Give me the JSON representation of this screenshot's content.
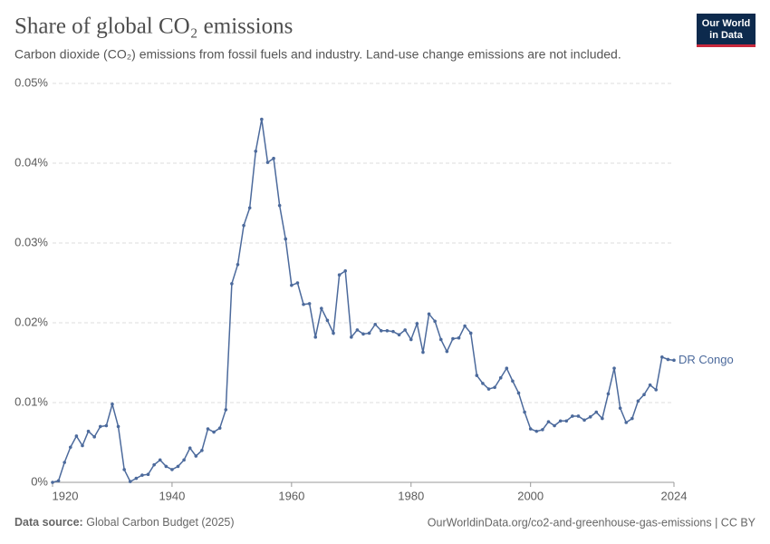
{
  "chart_data": {
    "type": "line",
    "title": "Share of global CO₂ emissions",
    "subtitle": "Carbon dioxide (CO₂) emissions from fossil fuels and industry. Land-use change emissions are not included.",
    "logo": [
      "Our World",
      "in Data"
    ],
    "source_label": "Data source:",
    "source": "Global Carbon Budget (2025)",
    "footer_right": "OurWorldinData.org/co2-and-greenhouse-gas-emissions | CC BY",
    "x": [
      1920,
      1921,
      1922,
      1923,
      1924,
      1925,
      1926,
      1927,
      1928,
      1929,
      1930,
      1931,
      1932,
      1933,
      1934,
      1935,
      1936,
      1937,
      1938,
      1939,
      1940,
      1941,
      1942,
      1943,
      1944,
      1945,
      1946,
      1947,
      1948,
      1949,
      1950,
      1951,
      1952,
      1953,
      1954,
      1955,
      1956,
      1957,
      1958,
      1959,
      1960,
      1961,
      1962,
      1963,
      1964,
      1965,
      1966,
      1967,
      1968,
      1969,
      1970,
      1971,
      1972,
      1973,
      1974,
      1975,
      1976,
      1977,
      1978,
      1979,
      1980,
      1981,
      1982,
      1983,
      1984,
      1985,
      1986,
      1987,
      1988,
      1989,
      1990,
      1991,
      1992,
      1993,
      1994,
      1995,
      1996,
      1997,
      1998,
      1999,
      2000,
      2001,
      2002,
      2003,
      2004,
      2005,
      2006,
      2007,
      2008,
      2009,
      2010,
      2011,
      2012,
      2013,
      2014,
      2015,
      2016,
      2017,
      2018,
      2019,
      2020,
      2021,
      2022,
      2023,
      2024
    ],
    "series": [
      {
        "name": "DR Congo",
        "color": "#4c6a9c",
        "values": [
          0.0,
          0.0002,
          0.0025,
          0.0044,
          0.0058,
          0.0046,
          0.0064,
          0.0057,
          0.007,
          0.0071,
          0.0098,
          0.007,
          0.0016,
          0.0001,
          0.0005,
          0.0009,
          0.001,
          0.0022,
          0.0028,
          0.002,
          0.0016,
          0.002,
          0.0028,
          0.0043,
          0.0033,
          0.004,
          0.0067,
          0.0063,
          0.0068,
          0.0091,
          0.0249,
          0.0273,
          0.0322,
          0.0344,
          0.0415,
          0.0455,
          0.0401,
          0.0406,
          0.0347,
          0.0305,
          0.0247,
          0.025,
          0.0223,
          0.0224,
          0.0182,
          0.0218,
          0.0203,
          0.0187,
          0.026,
          0.0265,
          0.0182,
          0.0191,
          0.0186,
          0.0187,
          0.0198,
          0.019,
          0.019,
          0.0189,
          0.0185,
          0.0191,
          0.0179,
          0.0199,
          0.0163,
          0.0211,
          0.0202,
          0.0179,
          0.0164,
          0.018,
          0.0181,
          0.0196,
          0.0187,
          0.0134,
          0.0124,
          0.0117,
          0.0119,
          0.0131,
          0.0143,
          0.0127,
          0.0112,
          0.0088,
          0.0067,
          0.0064,
          0.0066,
          0.0076,
          0.0071,
          0.0077,
          0.0077,
          0.0083,
          0.0083,
          0.0078,
          0.0082,
          0.0088,
          0.008,
          0.0111,
          0.0143,
          0.0093,
          0.0075,
          0.008,
          0.0102,
          0.011,
          0.0122,
          0.0116,
          0.0157,
          0.0154,
          0.0153
        ]
      }
    ],
    "xlim": [
      1920,
      2024
    ],
    "xticks": [
      1920,
      1940,
      1960,
      1980,
      2000,
      2024
    ],
    "ylim": [
      0,
      0.05
    ],
    "yticks": [
      {
        "value": 0,
        "label": "0%"
      },
      {
        "value": 0.01,
        "label": "0.01%"
      },
      {
        "value": 0.02,
        "label": "0.02%"
      },
      {
        "value": 0.03,
        "label": "0.03%"
      },
      {
        "value": 0.04,
        "label": "0.04%"
      },
      {
        "value": 0.05,
        "label": "0.05%"
      }
    ],
    "grid": true
  }
}
